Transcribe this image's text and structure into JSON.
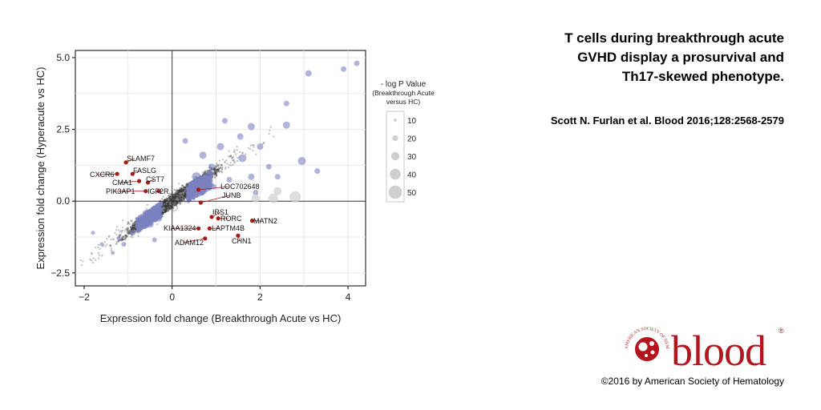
{
  "slide": {
    "title_lines": [
      "T cells during breakthrough acute",
      "GVHD display a prosurvival and",
      "Th17-skewed phenotype."
    ],
    "citation": "Scott N. Furlan et al. Blood 2016;128:2568-2579",
    "copyright": "©2016 by American Society of Hematology",
    "logo_text": "blood",
    "logo_ring_text": "AMERICAN SOCIETY OF HEMATOLOGY",
    "logo_registered": "®"
  },
  "colors": {
    "background_points": "#3a3a3a",
    "highlight_points": "#7b80c2",
    "labeled_genes": "#a31c1c",
    "brand": "#b4141e",
    "legend_circles": "#cfcfcf"
  },
  "chart_data": {
    "type": "scatter",
    "xlabel": "Expression fold change (Breakthrough Acute vs HC)",
    "ylabel": "Expression fold change (Hyperacute vs HC)",
    "xlim": [
      -2.2,
      4.4
    ],
    "ylim": [
      -2.95,
      5.25
    ],
    "xticks": [
      -2,
      0,
      2,
      4
    ],
    "yticks": [
      -2.5,
      0.0,
      2.5,
      5.0
    ],
    "xtick_labels": [
      "−2",
      "0",
      "2",
      "4"
    ],
    "ytick_labels": [
      "−2.5",
      "0.0",
      "2.5",
      "5.0"
    ],
    "grid": true,
    "legend": {
      "title_lines": [
        "- log P Value",
        "(Breakthrough Acute",
        "versus HC)"
      ],
      "entries": [
        10,
        20,
        30,
        40,
        50
      ],
      "placement": "right"
    },
    "labeled_genes": [
      {
        "gene": "SLAMF7",
        "x": -1.05,
        "y": 1.35
      },
      {
        "gene": "CXCR6",
        "x": -1.25,
        "y": 0.95
      },
      {
        "gene": "FASLG",
        "x": -0.9,
        "y": 0.95
      },
      {
        "gene": "CMA1",
        "x": -0.75,
        "y": 0.7
      },
      {
        "gene": "CST7",
        "x": -0.55,
        "y": 0.65
      },
      {
        "gene": "PIK3AP1",
        "x": -0.6,
        "y": 0.35
      },
      {
        "gene": "IGF2R",
        "x": -0.3,
        "y": 0.35
      },
      {
        "gene": "LOC702648",
        "x": 0.6,
        "y": 0.4
      },
      {
        "gene": "JUNB",
        "x": 0.65,
        "y": -0.05
      },
      {
        "gene": "IRS1",
        "x": 0.9,
        "y": -0.55
      },
      {
        "gene": "RORC",
        "x": 1.05,
        "y": -0.6
      },
      {
        "gene": "MATN2",
        "x": 1.82,
        "y": -0.68
      },
      {
        "gene": "KIAA1324",
        "x": 0.6,
        "y": -0.95
      },
      {
        "gene": "LAPTM4B",
        "x": 0.85,
        "y": -0.95
      },
      {
        "gene": "ADAM12",
        "x": 0.75,
        "y": -1.3
      },
      {
        "gene": "CHN1",
        "x": 1.5,
        "y": -1.2
      }
    ],
    "highlighted_points": [
      {
        "x": 4.2,
        "y": 4.8,
        "p": 20
      },
      {
        "x": 3.9,
        "y": 4.6,
        "p": 20
      },
      {
        "x": 3.1,
        "y": 4.45,
        "p": 25
      },
      {
        "x": 2.6,
        "y": 3.4,
        "p": 20
      },
      {
        "x": 2.6,
        "y": 2.65,
        "p": 30
      },
      {
        "x": 2.95,
        "y": 1.4,
        "p": 35
      },
      {
        "x": 3.3,
        "y": 1.05,
        "p": 20
      },
      {
        "x": 1.8,
        "y": 2.6,
        "p": 30
      },
      {
        "x": 1.55,
        "y": 2.25,
        "p": 25
      },
      {
        "x": 1.2,
        "y": 2.8,
        "p": 20
      },
      {
        "x": 2.0,
        "y": 1.9,
        "p": 25
      },
      {
        "x": 1.1,
        "y": 1.9,
        "p": 30
      },
      {
        "x": 1.6,
        "y": 1.5,
        "p": 35
      },
      {
        "x": 2.2,
        "y": 1.2,
        "p": 20
      },
      {
        "x": 0.7,
        "y": 1.6,
        "p": 30
      },
      {
        "x": 0.9,
        "y": 1.2,
        "p": 25
      },
      {
        "x": 1.3,
        "y": 0.75,
        "p": 20
      },
      {
        "x": 0.55,
        "y": 0.85,
        "p": 40
      },
      {
        "x": 0.45,
        "y": 0.55,
        "p": 35
      },
      {
        "x": 0.95,
        "y": 0.5,
        "p": 20
      },
      {
        "x": 1.8,
        "y": 0.85,
        "p": 25
      },
      {
        "x": 2.4,
        "y": 0.85,
        "p": 20
      },
      {
        "x": 1.9,
        "y": 0.3,
        "p": 20
      },
      {
        "x": 0.3,
        "y": 2.1,
        "p": 20
      },
      {
        "x": -0.5,
        "y": -0.8,
        "p": 30
      },
      {
        "x": -0.7,
        "y": -0.9,
        "p": 25
      },
      {
        "x": -0.3,
        "y": -0.6,
        "p": 25
      },
      {
        "x": -0.9,
        "y": -1.1,
        "p": 20
      },
      {
        "x": -0.6,
        "y": -0.4,
        "p": 20
      },
      {
        "x": -1.2,
        "y": -1.3,
        "p": 15
      },
      {
        "x": -1.6,
        "y": -1.5,
        "p": 10
      },
      {
        "x": -1.35,
        "y": -1.8,
        "p": 10
      },
      {
        "x": -1.1,
        "y": -1.5,
        "p": 15
      },
      {
        "x": -1.8,
        "y": -1.1,
        "p": 10
      },
      {
        "x": -0.4,
        "y": -1.35,
        "p": 15
      }
    ]
  }
}
